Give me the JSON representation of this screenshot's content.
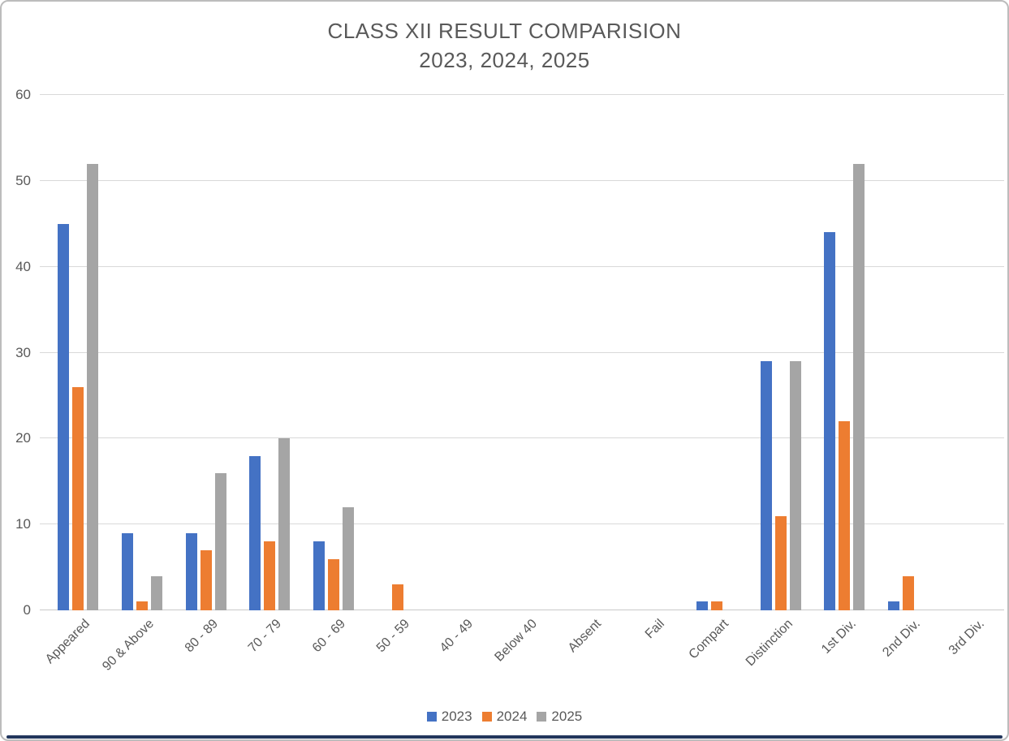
{
  "title": {
    "line1": "CLASS XII RESULT COMPARISION",
    "line2": "2023, 2024, 2025"
  },
  "chart_data": {
    "type": "bar",
    "title": "CLASS XII RESULT COMPARISION 2023, 2024, 2025",
    "categories": [
      "Appeared",
      "90 & Above",
      "80 - 89",
      "70 - 79",
      "60 - 69",
      "50 - 59",
      "40 - 49",
      "Below 40",
      "Absent",
      "Fail",
      "Compart",
      "Distinction",
      "1st Div.",
      "2nd Div.",
      "3rd Div."
    ],
    "series": [
      {
        "name": "2023",
        "color": "#4472C4",
        "values": [
          45,
          9,
          9,
          18,
          8,
          0,
          0,
          0,
          0,
          0,
          1,
          29,
          44,
          1,
          0
        ]
      },
      {
        "name": "2024",
        "color": "#ED7D31",
        "values": [
          26,
          1,
          7,
          8,
          6,
          3,
          0,
          0,
          0,
          0,
          1,
          11,
          22,
          4,
          0
        ]
      },
      {
        "name": "2025",
        "color": "#A5A5A5",
        "values": [
          52,
          4,
          16,
          20,
          12,
          0,
          0,
          0,
          0,
          0,
          0,
          29,
          52,
          0,
          0
        ]
      }
    ],
    "xlabel": "",
    "ylabel": "",
    "ylim": [
      0,
      60
    ],
    "ytick_step": 10,
    "yticks": [
      0,
      10,
      20,
      30,
      40,
      50,
      60
    ],
    "grid": true,
    "legend_position": "bottom"
  },
  "colors": {
    "text": "#595959",
    "gridline": "#D9D9D9",
    "series_2023": "#4472C4",
    "series_2024": "#ED7D31",
    "series_2025": "#A5A5A5",
    "bottom_bar": "#22365C"
  }
}
